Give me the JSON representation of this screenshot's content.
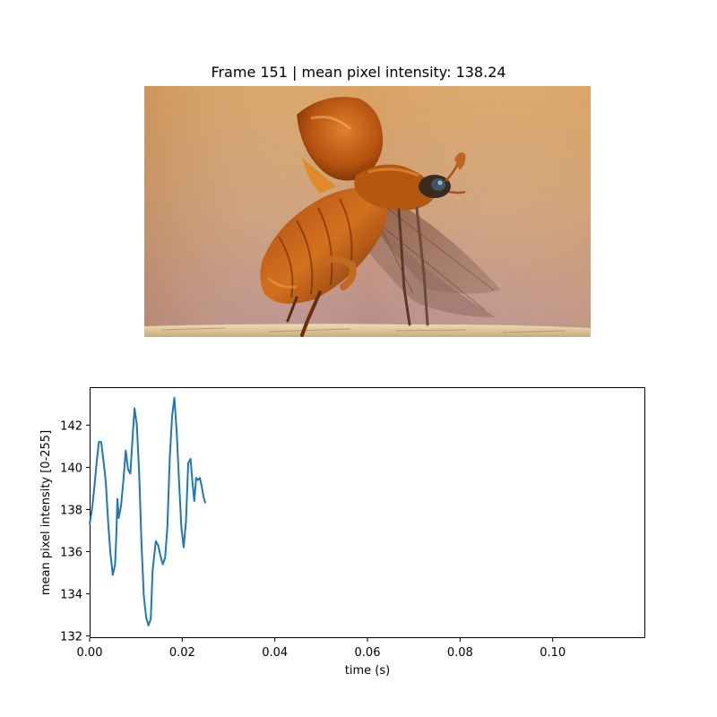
{
  "frame_panel": {
    "title": "Frame 151 | mean pixel intensity: 138.24",
    "image_subject": "beetle-taking-flight-photo"
  },
  "chart_data": {
    "type": "line",
    "title": "",
    "xlabel": "time (s)",
    "ylabel": "mean pixel intensity [0-255]",
    "xlim": [
      0.0,
      0.12
    ],
    "ylim": [
      131.9,
      143.8
    ],
    "xticks": [
      0.0,
      0.02,
      0.04,
      0.06,
      0.08,
      0.1
    ],
    "xtick_labels": [
      "0.00",
      "0.02",
      "0.04",
      "0.06",
      "0.08",
      "0.10"
    ],
    "yticks": [
      132,
      134,
      136,
      138,
      140,
      142
    ],
    "ytick_labels": [
      "132",
      "134",
      "136",
      "138",
      "140",
      "142"
    ],
    "grid": false,
    "line_color": "#1f77b4",
    "series": [
      {
        "x": [
          0.0,
          0.0005,
          0.001,
          0.0015,
          0.002,
          0.0025,
          0.003,
          0.0035,
          0.004,
          0.0045,
          0.005,
          0.0055,
          0.0058,
          0.006,
          0.0063,
          0.0068,
          0.0073,
          0.0078,
          0.0083,
          0.0088,
          0.0093,
          0.0097,
          0.0102,
          0.0107,
          0.0112,
          0.0117,
          0.0122,
          0.0127,
          0.0132,
          0.0136,
          0.0139,
          0.0143,
          0.0148,
          0.0153,
          0.0158,
          0.0163,
          0.0168,
          0.0173,
          0.0178,
          0.0183,
          0.0188,
          0.0193,
          0.0198,
          0.0203,
          0.0208,
          0.0213,
          0.0218,
          0.0222,
          0.0226,
          0.023,
          0.0234,
          0.0238,
          0.0242,
          0.0246,
          0.025
        ],
        "y": [
          137.3,
          138.0,
          139.0,
          140.2,
          141.2,
          141.2,
          140.3,
          139.3,
          137.4,
          135.9,
          134.9,
          135.4,
          137.0,
          138.5,
          137.6,
          138.2,
          139.4,
          140.8,
          139.9,
          139.7,
          141.5,
          142.8,
          142.0,
          139.7,
          136.4,
          133.9,
          132.9,
          132.5,
          132.8,
          135.1,
          135.7,
          136.5,
          136.3,
          135.8,
          135.4,
          135.7,
          137.2,
          140.4,
          142.4,
          143.3,
          141.7,
          139.4,
          137.2,
          136.2,
          137.4,
          140.2,
          140.4,
          139.3,
          138.4,
          139.5,
          139.4,
          139.5,
          139.1,
          138.6,
          138.3
        ]
      }
    ]
  }
}
